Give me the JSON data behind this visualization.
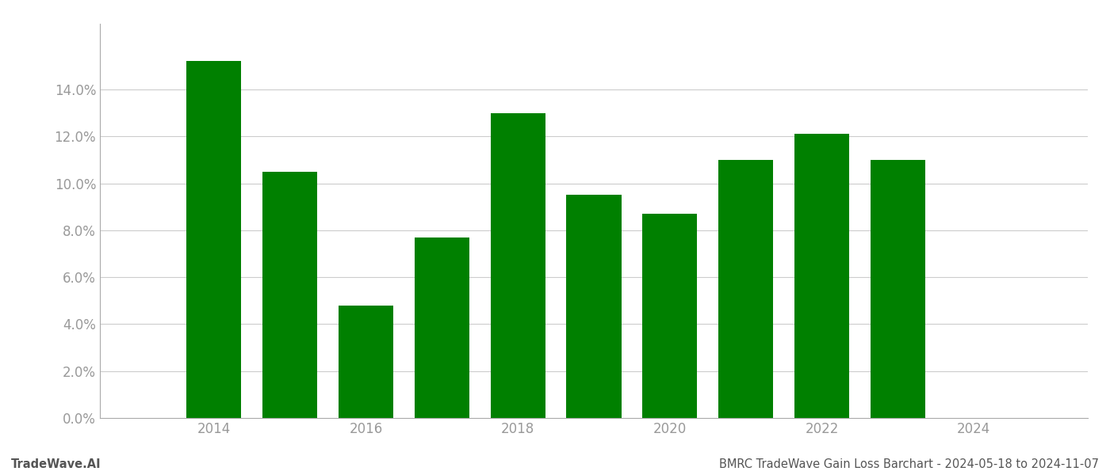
{
  "years": [
    2014,
    2015,
    2016,
    2017,
    2018,
    2019,
    2020,
    2021,
    2022,
    2023
  ],
  "values": [
    0.152,
    0.105,
    0.048,
    0.077,
    0.13,
    0.095,
    0.087,
    0.11,
    0.121,
    0.11
  ],
  "bar_color": "#008000",
  "background_color": "#ffffff",
  "grid_color": "#cccccc",
  "ylim": [
    0,
    0.168
  ],
  "yticks": [
    0.0,
    0.02,
    0.04,
    0.06,
    0.08,
    0.1,
    0.12,
    0.14
  ],
  "xticks": [
    2014,
    2016,
    2018,
    2020,
    2022,
    2024
  ],
  "footer_left": "TradeWave.AI",
  "footer_right": "BMRC TradeWave Gain Loss Barchart - 2024-05-18 to 2024-11-07",
  "footer_fontsize": 10.5,
  "tick_fontsize": 12,
  "bar_width": 0.72,
  "xlim_left": 2012.5,
  "xlim_right": 2025.5
}
